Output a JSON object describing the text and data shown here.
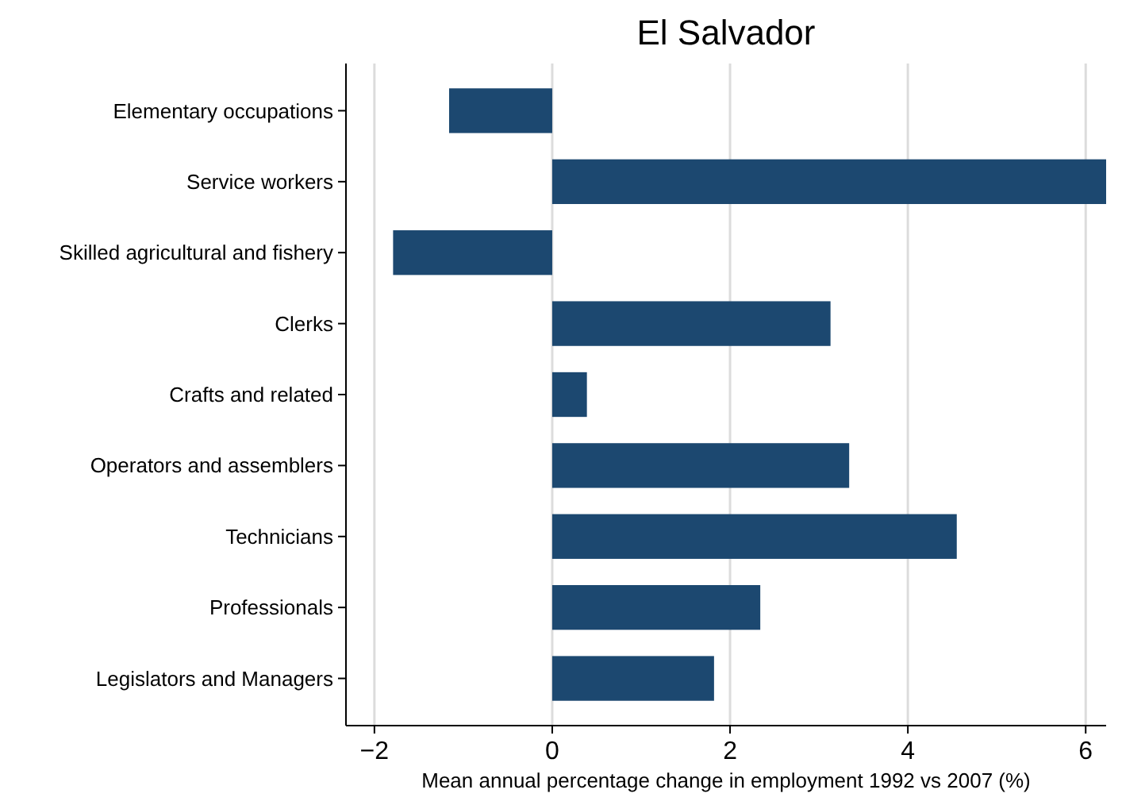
{
  "chart_data": {
    "type": "bar",
    "orientation": "horizontal",
    "title": "El Salvador",
    "xlabel": "Mean annual percentage change in employment 1992 vs 2007 (%)",
    "categories": [
      "Elementary occupations",
      "Service workers",
      "Skilled agricultural and fishery",
      "Clerks",
      "Crafts and related",
      "Operators and assemblers",
      "Technicians",
      "Professionals",
      "Legislators and Managers"
    ],
    "values": [
      -1.16,
      6.23,
      -1.79,
      3.13,
      0.39,
      3.34,
      4.55,
      2.34,
      1.82
    ],
    "color": "#1c4870",
    "xlim": [
      -2.32,
      6.23
    ],
    "xticks": [
      {
        "value": -2,
        "label": "−2"
      },
      0,
      2,
      4,
      6
    ],
    "grid": "x"
  }
}
